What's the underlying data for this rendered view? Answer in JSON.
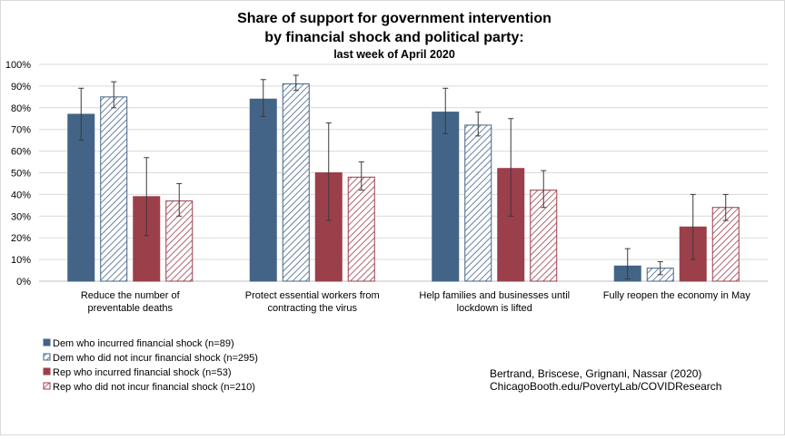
{
  "chart_data": {
    "type": "bar",
    "title_lines": [
      "Share of support for government  intervention",
      "by financial  shock and political  party:"
    ],
    "subtitle": "last week of April 2020",
    "categories": [
      [
        "Reduce the number of",
        "preventable deaths"
      ],
      [
        "Protect essential workers from",
        "contracting the virus"
      ],
      [
        "Help families and businesses until",
        "lockdown is lifted"
      ],
      [
        "Fully reopen the economy in May"
      ]
    ],
    "series": [
      {
        "name": "Dem who incurred financial shock (n=89)",
        "color": "#436487",
        "pattern": "solid",
        "values": [
          77,
          84,
          78,
          7
        ],
        "err_low": [
          65,
          76,
          68,
          1
        ],
        "err_high": [
          89,
          93,
          89,
          15
        ]
      },
      {
        "name": "Dem who did not incur financial shock (n=295)",
        "color": "#436487",
        "pattern": "hatch",
        "values": [
          85,
          91,
          72,
          6
        ],
        "err_low": [
          80,
          88,
          67,
          3
        ],
        "err_high": [
          92,
          95,
          78,
          9
        ]
      },
      {
        "name": "Rep who incurred financial shock (n=53)",
        "color": "#9b3f4b",
        "pattern": "solid",
        "values": [
          39,
          50,
          52,
          25
        ],
        "err_low": [
          21,
          28,
          30,
          10
        ],
        "err_high": [
          57,
          73,
          75,
          40
        ]
      },
      {
        "name": "Rep who did not incur financial shock (n=210)",
        "color": "#9b3f4b",
        "pattern": "hatch",
        "values": [
          37,
          48,
          42,
          34
        ],
        "err_low": [
          30,
          42,
          34,
          28
        ],
        "err_high": [
          45,
          55,
          51,
          40
        ]
      }
    ],
    "y_ticks": [
      "0%",
      "10%",
      "20%",
      "30%",
      "40%",
      "50%",
      "60%",
      "70%",
      "80%",
      "90%",
      "100%"
    ],
    "ylim": [
      0,
      100
    ],
    "grid": true,
    "legend_position": "bottom-left",
    "source_lines": [
      "Bertrand, Briscese, Grignani, Nassar (2020)",
      "ChicagoBooth.edu/PovertyLab/COVIDResearch"
    ]
  }
}
